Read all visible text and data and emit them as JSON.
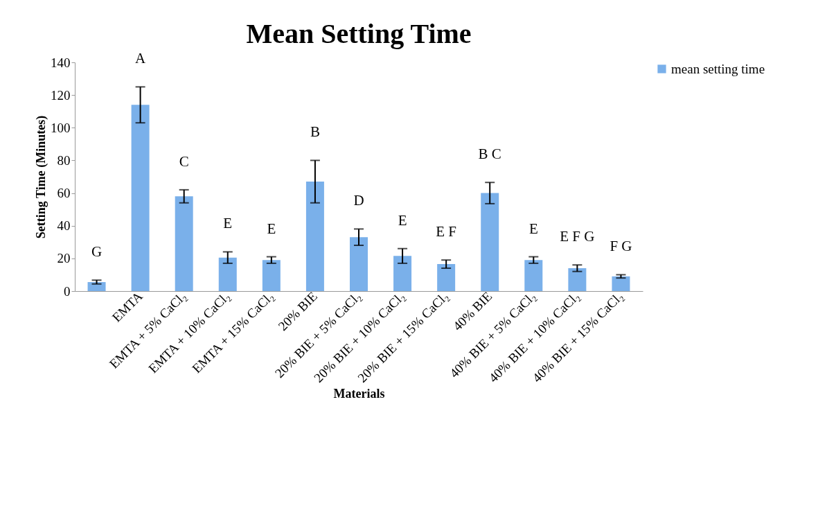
{
  "chart_data": {
    "type": "bar",
    "title": "Mean Setting Time",
    "xlabel": "Materials",
    "ylabel": "Setting Time (Minutes)",
    "categories": [
      null,
      "EMTA",
      "EMTA + 5% CaCl₂",
      "EMTA + 10% CaCl₂",
      "EMTA + 15% CaCl₂",
      "20% BIE",
      "20% BIE + 5% CaCl₂",
      "20% BIE + 10% CaCl₂",
      "20% BIE + 15% CaCl₂",
      "40% BIE",
      "40% BIE + 5% CaCl₂",
      "40% BIE + 10% CaCl₂",
      "40% BIE + 15% CaCl₂"
    ],
    "series": [
      {
        "name": "mean setting time",
        "color": "#7ab0ea",
        "values": [
          5.5,
          114,
          58,
          20.5,
          19,
          67,
          33,
          21.5,
          16.5,
          60,
          19,
          14,
          9
        ],
        "errors": [
          1.2,
          11,
          4,
          3.5,
          2,
          13,
          5,
          4.5,
          2.5,
          6.5,
          2,
          2,
          1
        ],
        "value_labels": [
          "G",
          "A",
          "C",
          "E",
          "E",
          "B",
          "D",
          "E",
          "E F",
          "B C",
          "E",
          "E F G",
          "F G"
        ]
      }
    ],
    "ylim": [
      0,
      140
    ],
    "yticks": [
      0,
      20,
      40,
      60,
      80,
      100,
      120,
      140
    ],
    "grid": false,
    "legend": "right"
  }
}
